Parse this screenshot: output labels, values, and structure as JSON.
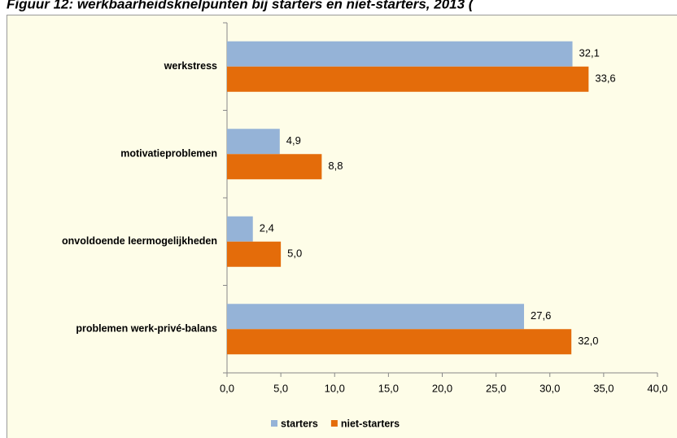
{
  "chart_data": {
    "type": "bar",
    "orientation": "horizontal",
    "title": "Figuur 12: werkbaarheidsknelpunten bij starters en niet-starters, 2013 (",
    "categories": [
      "werkstress",
      "motivatieproblemen",
      "onvoldoende leermogelijkheden",
      "problemen werk-privé-balans"
    ],
    "series": [
      {
        "name": "starters",
        "color": "#95b3d7",
        "values": [
          32.1,
          4.9,
          2.4,
          27.6
        ],
        "value_labels": [
          "32,1",
          "4,9",
          "2,4",
          "27,6"
        ]
      },
      {
        "name": "niet-starters",
        "color": "#e46c0a",
        "values": [
          33.6,
          8.8,
          5.0,
          32.0
        ],
        "value_labels": [
          "33,6",
          "8,8",
          "5,0",
          "32,0"
        ]
      }
    ],
    "xlim": [
      0,
      40
    ],
    "xticks": [
      {
        "value": 0,
        "label": "0,0"
      },
      {
        "value": 5,
        "label": "5,0"
      },
      {
        "value": 10,
        "label": "10,0"
      },
      {
        "value": 15,
        "label": "15,0"
      },
      {
        "value": 20,
        "label": "20,0"
      },
      {
        "value": 25,
        "label": "25,0"
      },
      {
        "value": 30,
        "label": "30,0"
      },
      {
        "value": 35,
        "label": "35,0"
      },
      {
        "value": 40,
        "label": "40,0"
      }
    ],
    "legend": "bottom"
  }
}
